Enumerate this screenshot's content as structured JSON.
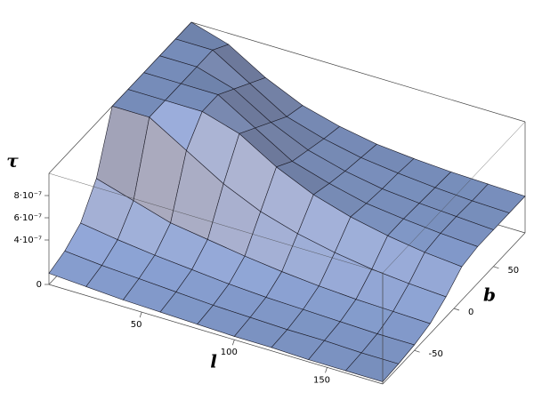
{
  "chart_data": {
    "type": "surface",
    "x_label": "l",
    "y_label": "b",
    "z_label": "τ",
    "x": [
      0,
      20,
      40,
      60,
      80,
      100,
      120,
      140,
      160,
      180
    ],
    "y": [
      -90,
      -70,
      -50,
      -30,
      -10,
      10,
      30,
      50,
      70,
      90
    ],
    "z": [
      [
        1e-07,
        8e-08,
        6e-08,
        5e-08,
        4e-08,
        3e-08,
        3e-08,
        2e-08,
        2e-08,
        2e-08
      ],
      [
        1.5e-07,
        1.2e-07,
        1e-07,
        8e-08,
        6e-08,
        5e-08,
        4e-08,
        4e-08,
        3e-08,
        3e-08
      ],
      [
        2.5e-07,
        2e-07,
        1.6e-07,
        1.3e-07,
        1e-07,
        8e-08,
        7e-08,
        6e-08,
        5e-08,
        5e-08
      ],
      [
        5e-07,
        4e-07,
        3e-07,
        2.5e-07,
        2e-07,
        1.6e-07,
        1.3e-07,
        1.1e-07,
        1e-07,
        9e-08
      ],
      [
        1e-06,
        1e-06,
        8e-07,
        6e-07,
        4.5e-07,
        3.5e-07,
        2.8e-07,
        2.3e-07,
        2e-07,
        1.8e-07
      ],
      [
        1e-06,
        1e-06,
        1e-06,
        9e-07,
        7e-07,
        5.5e-07,
        4.5e-07,
        3.8e-07,
        3.3e-07,
        3e-07
      ],
      [
        1e-06,
        1e-06,
        1e-06,
        8e-07,
        6e-07,
        5e-07,
        4.2e-07,
        3.8e-07,
        3.5e-07,
        3.3e-07
      ],
      [
        1e-06,
        1e-06,
        9e-07,
        7e-07,
        5.5e-07,
        4.6e-07,
        4e-07,
        3.7e-07,
        3.5e-07,
        3.3e-07
      ],
      [
        1e-06,
        1e-06,
        8e-07,
        6e-07,
        5e-07,
        4.3e-07,
        3.9e-07,
        3.6e-07,
        3.4e-07,
        3.3e-07
      ],
      [
        1e-06,
        9e-07,
        7e-07,
        5.5e-07,
        4.6e-07,
        4e-07,
        3.7e-07,
        3.5e-07,
        3.4e-07,
        3.3e-07
      ]
    ],
    "xlim": [
      0,
      180
    ],
    "ylim": [
      -90,
      90
    ],
    "zlim": [
      0,
      1e-06
    ],
    "xticks": [
      50,
      100,
      150
    ],
    "yticks": [
      -50,
      0,
      50
    ],
    "zticks": [
      0,
      {
        "value": 4e-07,
        "label": "4·10⁻⁷"
      },
      {
        "value": 6e-07,
        "label": "6·10⁻⁷"
      },
      {
        "value": 8e-07,
        "label": "8·10⁻⁷"
      }
    ]
  }
}
